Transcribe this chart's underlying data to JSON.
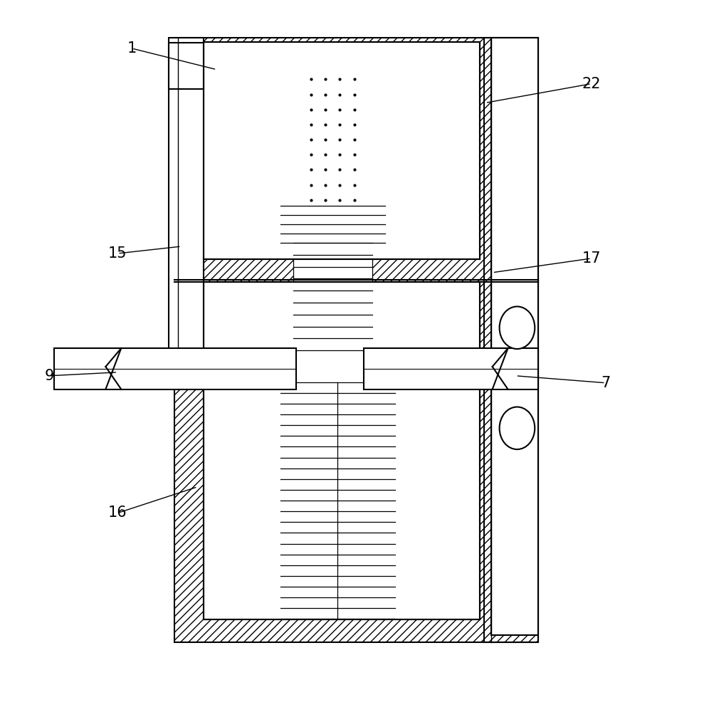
{
  "bg_color": "#ffffff",
  "line_color": "#000000",
  "fig_width": 9.96,
  "fig_height": 10.0,
  "label_data": {
    "1": [
      0.185,
      0.935,
      0.305,
      0.905
    ],
    "22": [
      0.835,
      0.885,
      0.685,
      0.858
    ],
    "15": [
      0.165,
      0.645,
      0.255,
      0.655
    ],
    "17": [
      0.835,
      0.638,
      0.695,
      0.618
    ],
    "9": [
      0.068,
      0.472,
      0.165,
      0.477
    ],
    "7": [
      0.855,
      0.462,
      0.728,
      0.472
    ],
    "16": [
      0.165,
      0.278,
      0.278,
      0.315
    ]
  }
}
